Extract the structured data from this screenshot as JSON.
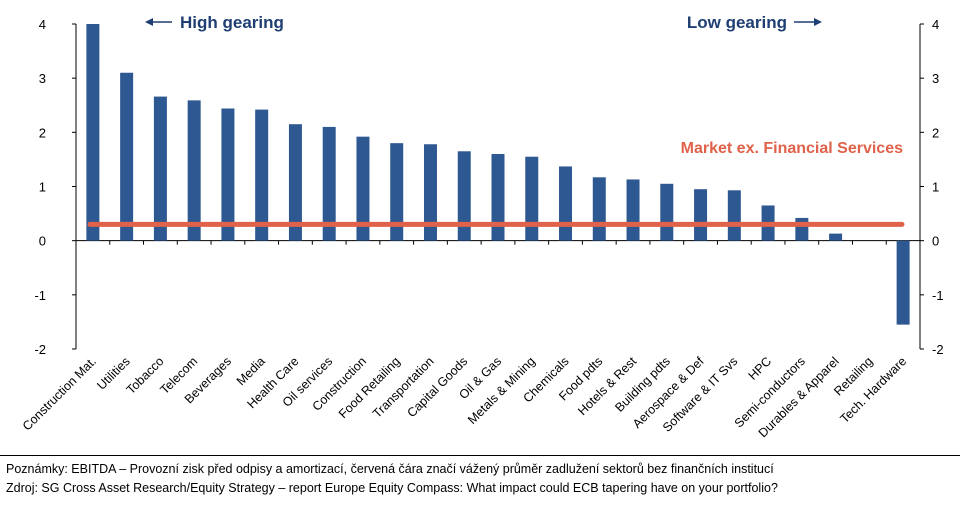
{
  "chart_data": {
    "type": "bar",
    "categories": [
      "Construction Mat.",
      "Utilities",
      "Tobacco",
      "Telecom",
      "Beverages",
      "Media",
      "Health Care",
      "Oil services",
      "Construction",
      "Food Retailing",
      "Transportation",
      "Capital Goods",
      "Oil & Gas",
      "Metals & Mining",
      "Chemicals",
      "Food pdts",
      "Hotels & Rest",
      "Building pdts",
      "Aerospace & Def",
      "Software & IT Svs",
      "HPC",
      "Semi-conductors",
      "Durables & Apparel",
      "Retailing",
      "Tech. Hardware"
    ],
    "values": [
      4.0,
      3.1,
      2.66,
      2.59,
      2.44,
      2.42,
      2.15,
      2.1,
      1.92,
      1.8,
      1.78,
      1.65,
      1.6,
      1.55,
      1.37,
      1.17,
      1.13,
      1.05,
      0.95,
      0.93,
      0.65,
      0.42,
      0.13,
      0.0,
      -1.55
    ],
    "market_line": {
      "value": 0.3,
      "label": "Market ex. Financial Services",
      "color": "#e0624a"
    },
    "bar_color": "#2e5891",
    "ylim": [
      -2,
      4
    ],
    "yticks": [
      "-2",
      "-1",
      "0",
      "1",
      "2",
      "3",
      "4"
    ],
    "annotations": {
      "left": "High gearing",
      "right": "Low gearing"
    },
    "title": "",
    "xlabel": "",
    "ylabel": ""
  },
  "notes": [
    "Poznámky: EBITDA – Provozní zisk před odpisy a amortizací, červená čára značí vážený průměr zadlužení sektorů bez finančních institucí",
    "Zdroj: SG Cross Asset Research/Equity Strategy – report Europe Equity Compass: What impact could ECB tapering have on your portfolio?"
  ]
}
